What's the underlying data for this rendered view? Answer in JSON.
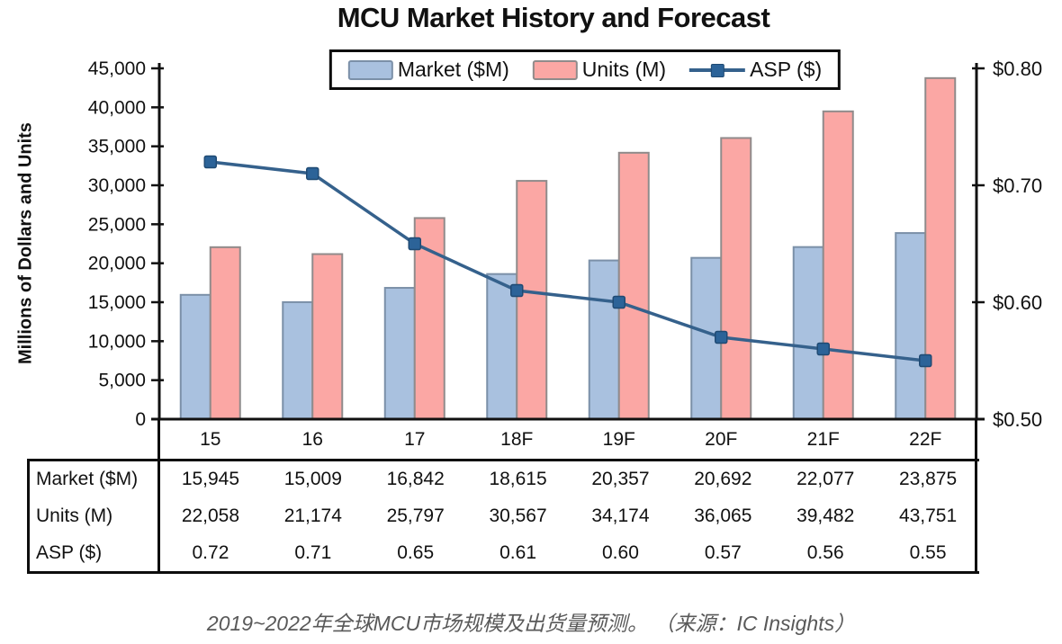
{
  "title": "MCU Market History and Forecast",
  "legend": {
    "market_label": "Market ($M)",
    "units_label": "Units (M)",
    "asp_label": "ASP ($)"
  },
  "chart_data": {
    "type": "combo-bar-line",
    "title": "MCU Market History and Forecast",
    "categories": [
      "15",
      "16",
      "17",
      "18F",
      "19F",
      "20F",
      "21F",
      "22F"
    ],
    "series": [
      {
        "name": "Market ($M)",
        "type": "bar",
        "axis": "left",
        "color": "#A9C1DF",
        "border": "#7B90A8",
        "values": [
          15945,
          15009,
          16842,
          18615,
          20357,
          20692,
          22077,
          23875
        ]
      },
      {
        "name": "Units (M)",
        "type": "bar",
        "axis": "left",
        "color": "#FBA7A4",
        "border": "#908B8B",
        "values": [
          22058,
          21174,
          25797,
          30567,
          34174,
          36065,
          39482,
          43751
        ]
      },
      {
        "name": "ASP ($)",
        "type": "line",
        "axis": "right",
        "color": "#35618C",
        "marker_color": "#2C6398",
        "marker_border": "#1F4A73",
        "values": [
          0.72,
          0.71,
          0.65,
          0.61,
          0.6,
          0.57,
          0.56,
          0.55
        ]
      }
    ],
    "left_axis": {
      "label": "Millions of Dollars and Units",
      "min": 0,
      "max": 45000,
      "step": 5000
    },
    "right_axis": {
      "min": 0.5,
      "max": 0.8,
      "step": 0.1,
      "prefix": "$"
    },
    "grid": false,
    "legend_position": "top"
  },
  "table": {
    "row_headers": [
      "Market ($M)",
      "Units (M)",
      "ASP ($)"
    ],
    "columns": [
      "15",
      "16",
      "17",
      "18F",
      "19F",
      "20F",
      "21F",
      "22F"
    ],
    "rows": [
      [
        "15,945",
        "15,009",
        "16,842",
        "18,615",
        "20,357",
        "20,692",
        "22,077",
        "23,875"
      ],
      [
        "22,058",
        "21,174",
        "25,797",
        "30,567",
        "34,174",
        "36,065",
        "39,482",
        "43,751"
      ],
      [
        "0.72",
        "0.71",
        "0.65",
        "0.61",
        "0.60",
        "0.57",
        "0.56",
        "0.55"
      ]
    ]
  },
  "caption": "2019~2022年全球MCU市场规模及出货量预测。 （来源：IC Insights）",
  "colors": {
    "market_bar": "#A9C1DF",
    "market_border": "#7B90A8",
    "units_bar": "#FBA7A4",
    "units_border": "#908B8B",
    "asp_line": "#35618C",
    "asp_marker": "#2C6398",
    "axis": "#111111",
    "caption_text": "#595959"
  }
}
